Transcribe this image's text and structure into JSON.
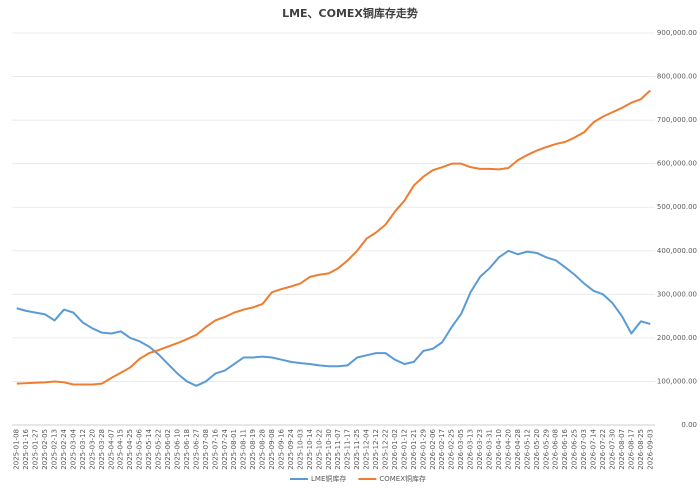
{
  "chart_data": {
    "type": "line",
    "title": "LME、COMEX铜库存走势",
    "categories": [
      "2025-01-08",
      "2025-01-16",
      "2025-01-27",
      "2025-02-05",
      "2025-02-13",
      "2025-02-24",
      "2025-03-04",
      "2025-03-12",
      "2025-03-20",
      "2025-03-28",
      "2025-04-07",
      "2025-04-15",
      "2025-04-25",
      "2025-05-06",
      "2025-05-14",
      "2025-05-22",
      "2025-06-02",
      "2025-06-10",
      "2025-06-18",
      "2025-06-27",
      "2025-07-08",
      "2025-07-16",
      "2025-07-24",
      "2025-08-01",
      "2025-08-11",
      "2025-08-19",
      "2025-08-28",
      "2025-09-08",
      "2025-09-16",
      "2025-09-24",
      "2025-10-03",
      "2025-10-14",
      "2025-10-22",
      "2025-10-30",
      "2025-11-07",
      "2025-11-17",
      "2025-11-25",
      "2025-12-04",
      "2025-12-12",
      "2025-12-22",
      "2026-01-02",
      "2026-01-12",
      "2026-01-21",
      "2026-01-29",
      "2026-02-06",
      "2026-02-17",
      "2026-02-25",
      "2026-03-05",
      "2026-03-13",
      "2026-03-23",
      "2026-03-31",
      "2026-04-10",
      "2026-04-20",
      "2026-04-28",
      "2026-05-12",
      "2026-05-20",
      "2026-05-29",
      "2026-06-08",
      "2026-06-16",
      "2026-06-25",
      "2026-07-03",
      "2026-07-14",
      "2026-07-22",
      "2026-07-30",
      "2026-08-07",
      "2026-08-17",
      "2026-08-25",
      "2026-09-03"
    ],
    "series": [
      {
        "name": "LME铜库存",
        "color": "#5b9bd5",
        "values": [
          268000,
          262000,
          258000,
          254000,
          240000,
          265000,
          258000,
          235000,
          222000,
          212000,
          210000,
          215000,
          200000,
          192000,
          180000,
          162000,
          140000,
          118000,
          100000,
          90000,
          100000,
          118000,
          125000,
          140000,
          155000,
          155000,
          157000,
          155000,
          150000,
          145000,
          142000,
          140000,
          137000,
          135000,
          135000,
          137000,
          155000,
          160000,
          165000,
          165000,
          150000,
          140000,
          145000,
          170000,
          175000,
          190000,
          225000,
          255000,
          305000,
          340000,
          360000,
          385000,
          400000,
          392000,
          398000,
          395000,
          385000,
          378000,
          362000,
          345000,
          325000,
          308000,
          300000,
          280000,
          250000,
          210000,
          238000,
          232000
        ]
      },
      {
        "name": "COMEX铜库存",
        "color": "#ed7d31",
        "values": [
          95000,
          96000,
          97000,
          98000,
          100000,
          98000,
          93000,
          93000,
          93000,
          95000,
          108000,
          120000,
          132000,
          152000,
          165000,
          172000,
          180000,
          188000,
          197000,
          207000,
          225000,
          240000,
          248000,
          258000,
          265000,
          270000,
          278000,
          305000,
          312000,
          318000,
          325000,
          340000,
          345000,
          348000,
          360000,
          378000,
          400000,
          428000,
          442000,
          460000,
          490000,
          515000,
          550000,
          570000,
          585000,
          592000,
          600000,
          600000,
          592000,
          588000,
          588000,
          587000,
          590000,
          608000,
          620000,
          630000,
          638000,
          645000,
          650000,
          660000,
          672000,
          695000,
          708000,
          718000,
          728000,
          740000,
          748000,
          768000
        ]
      }
    ],
    "ylim": [
      0,
      900000
    ],
    "yticks": [
      {
        "value": 0,
        "label": "0.00"
      },
      {
        "value": 100000,
        "label": "100,000.00"
      },
      {
        "value": 200000,
        "label": "200,000.00"
      },
      {
        "value": 300000,
        "label": "300,000.00"
      },
      {
        "value": 400000,
        "label": "400,000.00"
      },
      {
        "value": 500000,
        "label": "500,000.00"
      },
      {
        "value": 600000,
        "label": "600,000.00"
      },
      {
        "value": 700000,
        "label": "700,000.00"
      },
      {
        "value": 800000,
        "label": "800,000.00"
      },
      {
        "value": 900000,
        "label": "900,000.00"
      }
    ],
    "grid": true,
    "legend": "bottom"
  }
}
